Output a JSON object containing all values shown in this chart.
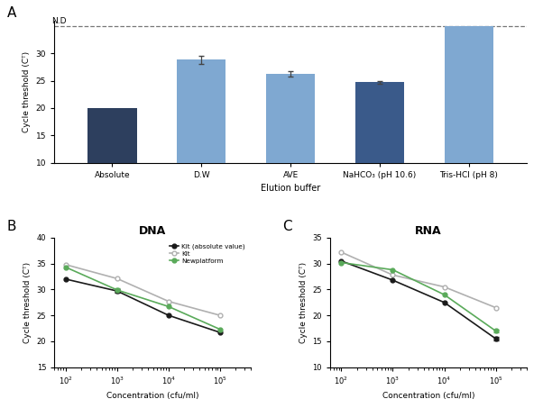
{
  "panel_A": {
    "categories": [
      "Absolute",
      "D.W",
      "AVE",
      "NaHCO₃ (pH 10.6)",
      "Tris-HCl (pH 8)"
    ],
    "values": [
      20.0,
      28.8,
      26.2,
      24.7,
      35.0
    ],
    "errors": [
      0.0,
      0.7,
      0.5,
      0.3,
      0.0
    ],
    "colors": [
      "#2d3f5e",
      "#7fa8d1",
      "#7fa8d1",
      "#3a5a8a",
      "#7fa8d1"
    ],
    "nd_value": 35.0,
    "ylim": [
      10,
      36
    ],
    "yticks": [
      10,
      15,
      20,
      25,
      30
    ],
    "ylabel": "Cycle threshold (Cᵀ)",
    "xlabel": "Elution buffer",
    "nd_label": "N.D",
    "title": "A"
  },
  "panel_B": {
    "title": "B",
    "chart_title": "DNA",
    "x": [
      100,
      1000,
      10000,
      100000
    ],
    "kit_abs": [
      32.0,
      29.7,
      25.0,
      21.7
    ],
    "kit": [
      34.8,
      32.1,
      27.7,
      25.0
    ],
    "newplatform": [
      34.3,
      29.9,
      26.7,
      22.3
    ],
    "kit_abs_err": [
      0,
      0.3,
      0,
      0
    ],
    "kit_err": [
      0,
      0,
      0,
      0
    ],
    "newplatform_err": [
      0,
      0.3,
      0,
      0
    ],
    "ylim": [
      15,
      40
    ],
    "yticks": [
      15,
      20,
      25,
      30,
      35,
      40
    ],
    "ylabel": "Cycle threshold (Cᵀ)",
    "xlabel": "Concentration (cfu/ml)",
    "legend_kit_abs": "Kit (absolute value)",
    "legend_kit": "Kit",
    "legend_new": "Newplatform"
  },
  "panel_C": {
    "title": "C",
    "chart_title": "RNA",
    "x": [
      100,
      1000,
      10000,
      100000
    ],
    "kit_abs": [
      30.5,
      26.8,
      22.5,
      15.5
    ],
    "kit": [
      32.2,
      27.8,
      25.5,
      21.5
    ],
    "newplatform": [
      30.2,
      28.8,
      24.0,
      17.0
    ],
    "kit_abs_err": [
      0,
      0,
      0,
      0.3
    ],
    "kit_err": [
      0,
      0,
      0,
      0
    ],
    "newplatform_err": [
      0,
      0,
      0,
      0.3
    ],
    "ylim": [
      10,
      35
    ],
    "yticks": [
      10,
      15,
      20,
      25,
      30,
      35
    ],
    "ylabel": "Cycle threshold (Cᵀ)",
    "xlabel": "Concentration (cfu/ml)"
  },
  "colors": {
    "kit_abs": "#1a1a1a",
    "kit": "#b0b0b0",
    "newplatform": "#5aaa5a",
    "background": "#ffffff"
  }
}
